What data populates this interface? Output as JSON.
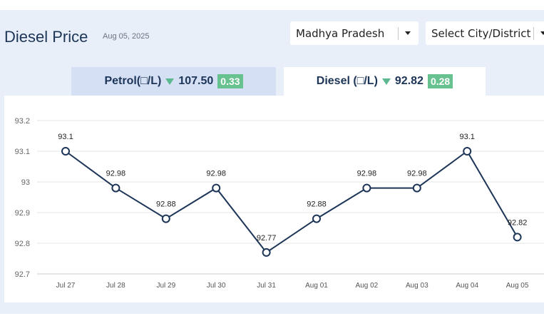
{
  "header": {
    "title": "Diesel Price",
    "date": "Aug 05, 2025"
  },
  "selectors": {
    "state": "Madhya Pradesh",
    "city_placeholder": "Select City/District"
  },
  "tabs": [
    {
      "fuel": "Petrol",
      "unit_label": "Petrol(□/L)",
      "price": "107.50",
      "trend": "down",
      "change": "0.33",
      "active": false
    },
    {
      "fuel": "Diesel",
      "unit_label": "Diesel (□/L)",
      "price": "92.82",
      "trend": "down",
      "change": "0.28",
      "active": true
    }
  ],
  "colors": {
    "accent": "#1d3557",
    "down_indicator": "#5cb88f",
    "change_badge": "#68c28f",
    "active_tab_bg": "#ffffff",
    "inactive_tab_bg": "#d5e0f5",
    "line": "#1d3557"
  },
  "chart_data": {
    "type": "line",
    "categories": [
      "Jul 27",
      "Jul 28",
      "Jul 29",
      "Jul 30",
      "Jul 31",
      "Aug 01",
      "Aug 02",
      "Aug 03",
      "Aug 04",
      "Aug 05"
    ],
    "series": [
      {
        "values": [
          93.1,
          92.98,
          92.88,
          92.98,
          92.77,
          92.88,
          92.98,
          92.98,
          93.1,
          92.82
        ]
      }
    ],
    "data_labels": [
      "93.1",
      "92.98",
      "92.88",
      "92.98",
      "92.77",
      "92.88",
      "92.98",
      "92.98",
      "93.1",
      "92.82"
    ],
    "yticks": [
      "92.7",
      "92.8",
      "92.9",
      "93",
      "93.1",
      "93.2"
    ],
    "ylim": [
      92.7,
      93.2
    ],
    "grid": true,
    "title": "",
    "xlabel": "",
    "ylabel": ""
  }
}
